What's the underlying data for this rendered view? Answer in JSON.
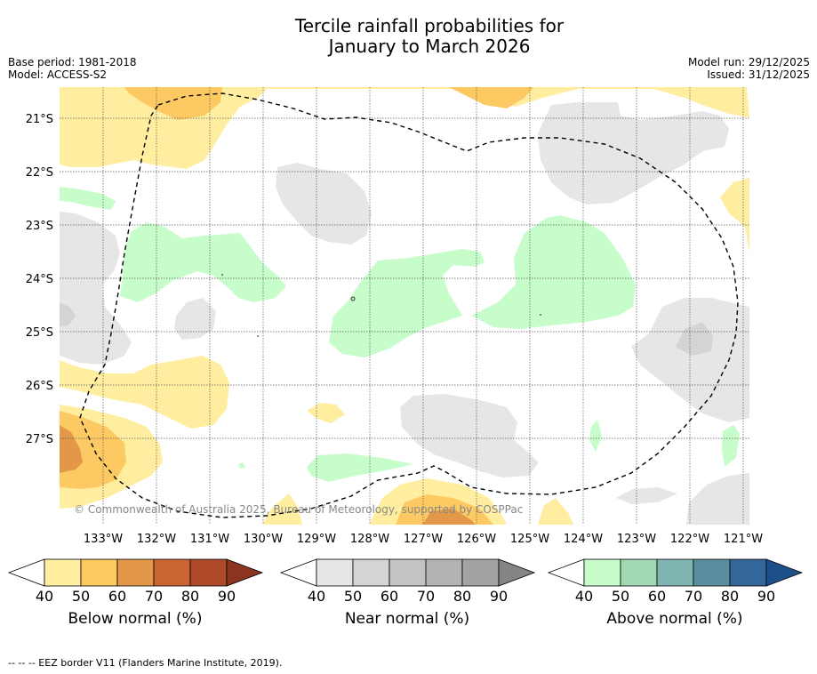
{
  "title_line1": "Tercile rainfall probabilities for",
  "title_line2": "January to March 2026",
  "base_period": "Base period: 1981-2018",
  "model": "Model: ACCESS-S2",
  "model_run": "Model run: 29/12/2025",
  "issued": "Issued: 31/12/2025",
  "copyright": "© Commonwealth of Australia 2025, Bureau of Meteorology, supported by COSPPac",
  "lat_labels": [
    "21°S",
    "22°S",
    "23°S",
    "24°S",
    "25°S",
    "26°S",
    "27°S"
  ],
  "lon_labels": [
    "133°W",
    "132°W",
    "131°W",
    "130°W",
    "129°W",
    "128°W",
    "127°W",
    "126°W",
    "125°W",
    "124°W",
    "123°W",
    "122°W",
    "121°W"
  ],
  "colorbars": [
    {
      "name": "below",
      "label": "Below normal (%)",
      "ticks": [
        "40",
        "50",
        "60",
        "70",
        "80",
        "90"
      ],
      "colors": [
        "#ffeea0",
        "#fdc962",
        "#e39849",
        "#cc6534",
        "#ae4a29",
        "#8b3521"
      ]
    },
    {
      "name": "near",
      "label": "Near normal (%)",
      "ticks": [
        "40",
        "50",
        "60",
        "70",
        "80",
        "90"
      ],
      "colors": [
        "#e6e6e6",
        "#d4d4d4",
        "#c3c3c3",
        "#b3b3b3",
        "#a3a3a3",
        "#858585"
      ]
    },
    {
      "name": "above",
      "label": "Above normal (%)",
      "ticks": [
        "40",
        "50",
        "60",
        "70",
        "80",
        "90"
      ],
      "colors": [
        "#c7fdca",
        "#a3d8b5",
        "#80b5b2",
        "#5a8f9f",
        "#336699",
        "#1d4f8a"
      ]
    }
  ],
  "footer": "-- -- -- EEZ border V11 (Flanders Marine Institute, 2019)."
}
